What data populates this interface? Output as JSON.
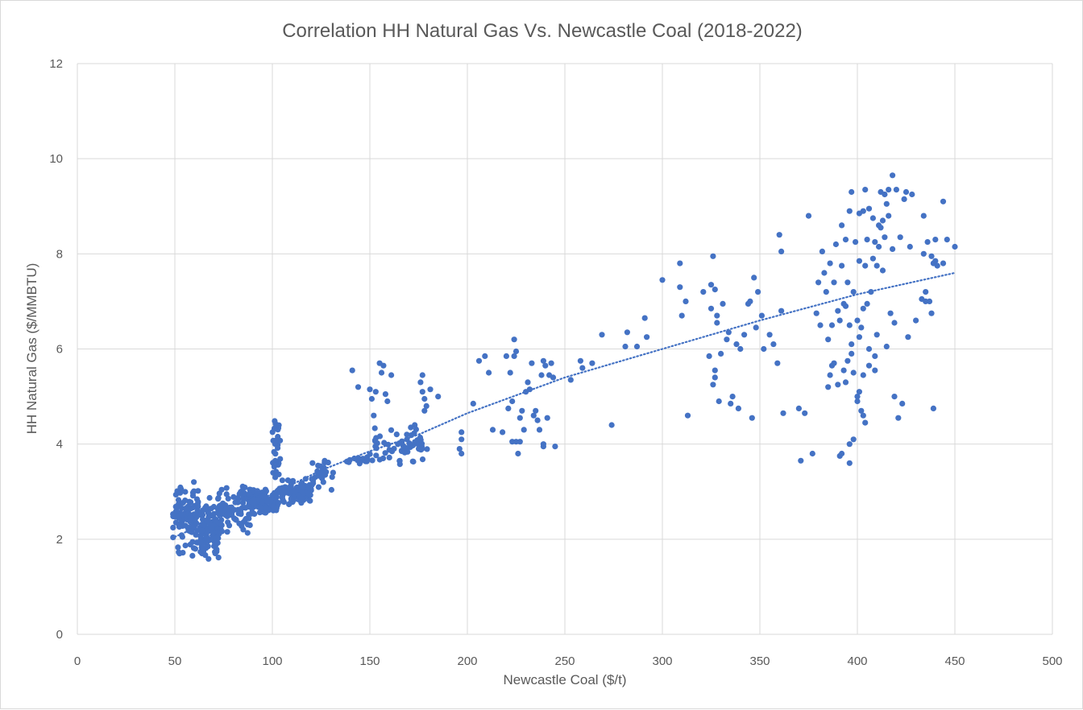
{
  "chart_data": {
    "type": "scatter",
    "title": "Correlation HH Natural Gas Vs. Newcastle Coal (2018-2022)",
    "xlabel": "Newcastle Coal ($/t)",
    "ylabel": "HH Natural Gas ($/MMBTU)",
    "xlim": [
      0,
      500
    ],
    "ylim": [
      0,
      12
    ],
    "x_ticks": [
      0,
      50,
      100,
      150,
      200,
      250,
      300,
      350,
      400,
      450,
      500
    ],
    "y_ticks": [
      0,
      2,
      4,
      6,
      8,
      10,
      12
    ],
    "grid": true,
    "marker_color": "#4472C4",
    "trendline": {
      "type": "logarithmic",
      "style": "dotted",
      "x_range": [
        50,
        450
      ],
      "points": [
        [
          50,
          2.05
        ],
        [
          75,
          2.5
        ],
        [
          100,
          2.95
        ],
        [
          125,
          3.45
        ],
        [
          150,
          3.85
        ],
        [
          175,
          4.2
        ],
        [
          200,
          4.65
        ],
        [
          250,
          5.4
        ],
        [
          300,
          6.0
        ],
        [
          350,
          6.6
        ],
        [
          400,
          7.15
        ],
        [
          450,
          7.6
        ]
      ]
    },
    "clusters": [
      {
        "x": [
          49,
          62
        ],
        "y": [
          1.5,
          3.4
        ],
        "n": 110
      },
      {
        "x": [
          63,
          73
        ],
        "y": [
          1.5,
          2.9
        ],
        "n": 110
      },
      {
        "x": [
          72,
          90
        ],
        "y": [
          2.1,
          3.2
        ],
        "n": 90
      },
      {
        "x": [
          88,
          103
        ],
        "y": [
          2.5,
          3.1
        ],
        "n": 140
      },
      {
        "x": [
          100,
          104
        ],
        "y": [
          2.6,
          4.85
        ],
        "n": 30
      },
      {
        "x": [
          103,
          120
        ],
        "y": [
          2.7,
          3.3
        ],
        "n": 100
      },
      {
        "x": [
          120,
          132
        ],
        "y": [
          3.0,
          3.7
        ],
        "n": 25
      },
      {
        "x": [
          138,
          150
        ],
        "y": [
          3.55,
          3.75
        ],
        "n": 18
      },
      {
        "x": [
          150,
          180
        ],
        "y": [
          3.55,
          4.4
        ],
        "n": 60
      }
    ],
    "points": [
      [
        141,
        5.55
      ],
      [
        144,
        5.2
      ],
      [
        150,
        5.15
      ],
      [
        151,
        4.95
      ],
      [
        152,
        4.6
      ],
      [
        153,
        5.1
      ],
      [
        155,
        5.7
      ],
      [
        156,
        5.5
      ],
      [
        157,
        5.65
      ],
      [
        158,
        5.05
      ],
      [
        159,
        4.9
      ],
      [
        161,
        5.45
      ],
      [
        176,
        5.3
      ],
      [
        177,
        5.45
      ],
      [
        177,
        5.1
      ],
      [
        178,
        4.95
      ],
      [
        178,
        4.7
      ],
      [
        179,
        4.8
      ],
      [
        181,
        5.15
      ],
      [
        185,
        5.0
      ],
      [
        169,
        4.1
      ],
      [
        171,
        4.35
      ],
      [
        173,
        4.4
      ],
      [
        196,
        3.9
      ],
      [
        197,
        4.1
      ],
      [
        197,
        4.25
      ],
      [
        197,
        3.8
      ],
      [
        203,
        4.85
      ],
      [
        206,
        5.75
      ],
      [
        209,
        5.85
      ],
      [
        211,
        5.5
      ],
      [
        213,
        4.3
      ],
      [
        218,
        4.25
      ],
      [
        220,
        5.85
      ],
      [
        221,
        4.75
      ],
      [
        222,
        5.5
      ],
      [
        223,
        4.9
      ],
      [
        224,
        6.2
      ],
      [
        224,
        5.85
      ],
      [
        225,
        5.95
      ],
      [
        225,
        4.05
      ],
      [
        226,
        3.8
      ],
      [
        227,
        4.55
      ],
      [
        228,
        4.7
      ],
      [
        229,
        4.3
      ],
      [
        230,
        5.1
      ],
      [
        231,
        5.3
      ],
      [
        232,
        5.15
      ],
      [
        233,
        5.7
      ],
      [
        234,
        4.6
      ],
      [
        235,
        4.7
      ],
      [
        236,
        4.5
      ],
      [
        237,
        4.3
      ],
      [
        238,
        5.45
      ],
      [
        239,
        5.75
      ],
      [
        239,
        4.0
      ],
      [
        240,
        5.65
      ],
      [
        241,
        4.55
      ],
      [
        242,
        5.45
      ],
      [
        243,
        5.7
      ],
      [
        244,
        5.4
      ],
      [
        245,
        3.95
      ],
      [
        223,
        4.05
      ],
      [
        227,
        4.05
      ],
      [
        239,
        3.95
      ],
      [
        253,
        5.35
      ],
      [
        258,
        5.75
      ],
      [
        259,
        5.6
      ],
      [
        264,
        5.7
      ],
      [
        269,
        6.3
      ],
      [
        274,
        4.4
      ],
      [
        281,
        6.05
      ],
      [
        282,
        6.35
      ],
      [
        287,
        6.05
      ],
      [
        291,
        6.65
      ],
      [
        292,
        6.25
      ],
      [
        300,
        7.45
      ],
      [
        309,
        7.8
      ],
      [
        309,
        7.3
      ],
      [
        310,
        6.7
      ],
      [
        312,
        7.0
      ],
      [
        313,
        4.6
      ],
      [
        321,
        7.2
      ],
      [
        324,
        5.85
      ],
      [
        325,
        7.35
      ],
      [
        325,
        6.85
      ],
      [
        326,
        7.95
      ],
      [
        326,
        5.25
      ],
      [
        327,
        5.4
      ],
      [
        327,
        5.55
      ],
      [
        327,
        7.25
      ],
      [
        328,
        6.55
      ],
      [
        328,
        6.7
      ],
      [
        329,
        4.9
      ],
      [
        330,
        5.9
      ],
      [
        331,
        6.95
      ],
      [
        333,
        6.2
      ],
      [
        334,
        6.35
      ],
      [
        335,
        4.85
      ],
      [
        336,
        5.0
      ],
      [
        338,
        6.1
      ],
      [
        339,
        4.75
      ],
      [
        340,
        6.0
      ],
      [
        342,
        6.3
      ],
      [
        344,
        6.95
      ],
      [
        345,
        7.0
      ],
      [
        346,
        4.55
      ],
      [
        347,
        7.5
      ],
      [
        348,
        6.45
      ],
      [
        349,
        7.2
      ],
      [
        351,
        6.7
      ],
      [
        352,
        6.0
      ],
      [
        355,
        6.3
      ],
      [
        357,
        6.1
      ],
      [
        359,
        5.7
      ],
      [
        360,
        8.4
      ],
      [
        361,
        8.05
      ],
      [
        361,
        6.8
      ],
      [
        362,
        4.65
      ],
      [
        370,
        4.75
      ],
      [
        371,
        3.65
      ],
      [
        373,
        4.65
      ],
      [
        375,
        8.8
      ],
      [
        377,
        3.8
      ],
      [
        379,
        6.75
      ],
      [
        380,
        7.4
      ],
      [
        381,
        6.5
      ],
      [
        382,
        8.05
      ],
      [
        383,
        7.6
      ],
      [
        384,
        7.2
      ],
      [
        385,
        5.2
      ],
      [
        385,
        6.2
      ],
      [
        386,
        5.45
      ],
      [
        386,
        7.8
      ],
      [
        387,
        6.5
      ],
      [
        387,
        5.65
      ],
      [
        388,
        7.4
      ],
      [
        388,
        5.7
      ],
      [
        389,
        8.2
      ],
      [
        390,
        6.8
      ],
      [
        390,
        5.25
      ],
      [
        391,
        6.6
      ],
      [
        391,
        3.75
      ],
      [
        392,
        7.75
      ],
      [
        392,
        8.6
      ],
      [
        393,
        6.95
      ],
      [
        393,
        5.55
      ],
      [
        394,
        6.9
      ],
      [
        394,
        8.3
      ],
      [
        395,
        5.75
      ],
      [
        395,
        7.4
      ],
      [
        396,
        8.9
      ],
      [
        396,
        6.5
      ],
      [
        396,
        4.0
      ],
      [
        396,
        3.6
      ],
      [
        397,
        9.3
      ],
      [
        397,
        6.1
      ],
      [
        398,
        7.2
      ],
      [
        398,
        5.5
      ],
      [
        398,
        4.1
      ],
      [
        399,
        8.25
      ],
      [
        400,
        6.6
      ],
      [
        400,
        5.0
      ],
      [
        400,
        4.9
      ],
      [
        401,
        8.85
      ],
      [
        401,
        7.85
      ],
      [
        401,
        6.25
      ],
      [
        402,
        6.45
      ],
      [
        402,
        4.7
      ],
      [
        403,
        8.9
      ],
      [
        403,
        6.85
      ],
      [
        403,
        5.45
      ],
      [
        404,
        7.75
      ],
      [
        404,
        9.35
      ],
      [
        404,
        4.45
      ],
      [
        405,
        8.3
      ],
      [
        405,
        6.95
      ],
      [
        406,
        5.65
      ],
      [
        406,
        8.95
      ],
      [
        407,
        7.2
      ],
      [
        408,
        8.75
      ],
      [
        408,
        7.9
      ],
      [
        409,
        8.25
      ],
      [
        409,
        5.55
      ],
      [
        410,
        7.75
      ],
      [
        410,
        6.3
      ],
      [
        411,
        8.6
      ],
      [
        411,
        8.15
      ],
      [
        412,
        9.3
      ],
      [
        412,
        8.55
      ],
      [
        413,
        7.65
      ],
      [
        413,
        8.7
      ],
      [
        414,
        9.25
      ],
      [
        414,
        8.35
      ],
      [
        415,
        9.05
      ],
      [
        415,
        6.05
      ],
      [
        416,
        9.35
      ],
      [
        416,
        8.8
      ],
      [
        417,
        6.75
      ],
      [
        418,
        9.65
      ],
      [
        418,
        8.1
      ],
      [
        419,
        6.55
      ],
      [
        419,
        5.0
      ],
      [
        420,
        9.35
      ],
      [
        421,
        4.55
      ],
      [
        422,
        8.35
      ],
      [
        423,
        4.85
      ],
      [
        424,
        9.15
      ],
      [
        425,
        9.3
      ],
      [
        426,
        6.25
      ],
      [
        427,
        8.15
      ],
      [
        428,
        9.25
      ],
      [
        430,
        6.6
      ],
      [
        433,
        7.05
      ],
      [
        434,
        8.8
      ],
      [
        434,
        8.0
      ],
      [
        435,
        7.2
      ],
      [
        435,
        7.0
      ],
      [
        436,
        8.25
      ],
      [
        437,
        7.0
      ],
      [
        438,
        6.75
      ],
      [
        438,
        7.95
      ],
      [
        439,
        4.75
      ],
      [
        439,
        7.8
      ],
      [
        440,
        7.85
      ],
      [
        440,
        8.3
      ],
      [
        441,
        7.75
      ],
      [
        444,
        9.1
      ],
      [
        444,
        7.8
      ],
      [
        446,
        8.3
      ],
      [
        450,
        8.15
      ],
      [
        392,
        3.8
      ],
      [
        394,
        5.3
      ],
      [
        397,
        5.9
      ],
      [
        401,
        5.1
      ],
      [
        403,
        4.6
      ],
      [
        406,
        6.0
      ],
      [
        409,
        5.85
      ]
    ]
  }
}
